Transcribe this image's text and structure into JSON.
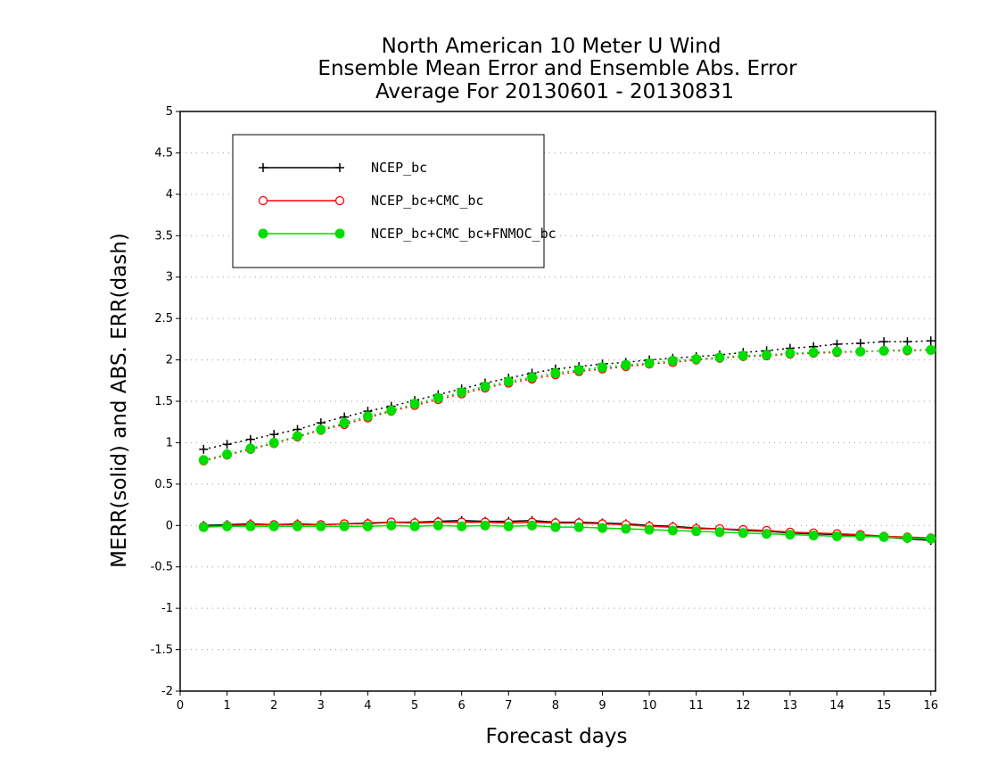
{
  "chart_data": {
    "type": "line",
    "title": [
      "North American 10 Meter U Wind",
      "Ensemble Mean Error and Ensemble Abs. Error",
      "Average For 20130601 - 20130831"
    ],
    "xlabel": "Forecast days",
    "ylabel": "MERR(solid) and ABS. ERR(dash)",
    "xlim": [
      0,
      16.1
    ],
    "ylim": [
      -2,
      5
    ],
    "xticks": [
      "0",
      "1",
      "2",
      "3",
      "4",
      "5",
      "6",
      "7",
      "8",
      "9",
      "10",
      "11",
      "12",
      "13",
      "14",
      "15",
      "16"
    ],
    "yticks": [
      "-2",
      "-1.5",
      "-1",
      "-0.5",
      "0",
      "0.5",
      "1",
      "1.5",
      "2",
      "2.5",
      "3",
      "3.5",
      "4",
      "4.5",
      "5"
    ],
    "grid": true,
    "legend_position": "top-left",
    "x": [
      0.5,
      1,
      1.5,
      2,
      2.5,
      3,
      3.5,
      4,
      4.5,
      5,
      5.5,
      6,
      6.5,
      7,
      7.5,
      8,
      8.5,
      9,
      9.5,
      10,
      10.5,
      11,
      11.5,
      12,
      12.5,
      13,
      13.5,
      14,
      14.5,
      15,
      15.5,
      16
    ],
    "series": [
      {
        "name": "NCEP_bc",
        "color": "#000000",
        "marker": "plus",
        "merr": [
          0.0,
          0.01,
          0.02,
          0.01,
          0.02,
          0.01,
          0.02,
          0.03,
          0.04,
          0.04,
          0.05,
          0.06,
          0.05,
          0.05,
          0.06,
          0.04,
          0.04,
          0.03,
          0.02,
          0.0,
          -0.01,
          -0.03,
          -0.04,
          -0.06,
          -0.07,
          -0.09,
          -0.1,
          -0.11,
          -0.12,
          -0.14,
          -0.16,
          -0.18
        ],
        "abs_err": [
          0.92,
          0.98,
          1.04,
          1.1,
          1.16,
          1.24,
          1.31,
          1.38,
          1.44,
          1.51,
          1.58,
          1.65,
          1.72,
          1.78,
          1.84,
          1.89,
          1.92,
          1.95,
          1.97,
          2.0,
          2.02,
          2.04,
          2.06,
          2.09,
          2.11,
          2.14,
          2.16,
          2.19,
          2.2,
          2.22,
          2.22,
          2.23
        ]
      },
      {
        "name": "NCEP_bc+CMC_bc",
        "color": "#ff0000",
        "marker": "open-circle",
        "merr": [
          -0.01,
          0.0,
          0.01,
          0.01,
          0.01,
          0.01,
          0.02,
          0.02,
          0.04,
          0.03,
          0.04,
          0.04,
          0.04,
          0.03,
          0.04,
          0.03,
          0.03,
          0.02,
          0.01,
          -0.01,
          -0.02,
          -0.04,
          -0.04,
          -0.05,
          -0.06,
          -0.08,
          -0.09,
          -0.1,
          -0.11,
          -0.13,
          -0.14,
          -0.15
        ],
        "abs_err": [
          0.78,
          0.85,
          0.92,
          0.99,
          1.07,
          1.15,
          1.22,
          1.3,
          1.38,
          1.45,
          1.52,
          1.59,
          1.66,
          1.72,
          1.77,
          1.82,
          1.86,
          1.89,
          1.92,
          1.95,
          1.97,
          2.0,
          2.02,
          2.04,
          2.05,
          2.07,
          2.08,
          2.09,
          2.1,
          2.11,
          2.11,
          2.12
        ]
      },
      {
        "name": "NCEP_bc+CMC_bc+FNMOC_bc",
        "color": "#00dd00",
        "marker": "filled-circle",
        "merr": [
          -0.02,
          -0.01,
          -0.01,
          -0.01,
          -0.01,
          -0.01,
          -0.01,
          -0.01,
          0.0,
          -0.01,
          0.0,
          -0.01,
          0.0,
          -0.01,
          0.0,
          -0.02,
          -0.02,
          -0.03,
          -0.04,
          -0.05,
          -0.06,
          -0.07,
          -0.08,
          -0.09,
          -0.1,
          -0.11,
          -0.12,
          -0.13,
          -0.13,
          -0.14,
          -0.15,
          -0.16
        ],
        "abs_err": [
          0.79,
          0.86,
          0.93,
          1.0,
          1.08,
          1.16,
          1.24,
          1.32,
          1.39,
          1.47,
          1.54,
          1.61,
          1.68,
          1.74,
          1.79,
          1.84,
          1.88,
          1.91,
          1.94,
          1.96,
          1.99,
          2.01,
          2.03,
          2.05,
          2.06,
          2.08,
          2.09,
          2.1,
          2.1,
          2.11,
          2.12,
          2.12
        ]
      }
    ]
  }
}
